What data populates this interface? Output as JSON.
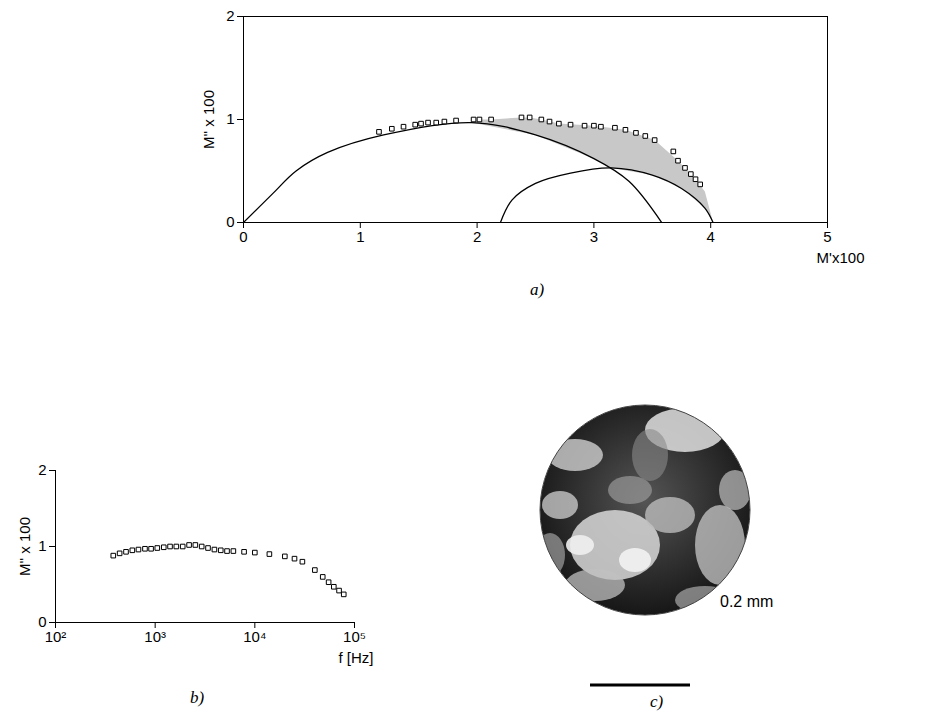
{
  "chart_data": [
    {
      "type": "scatter",
      "caption": "a)",
      "x_label": "M'x100",
      "y_label": "M'' x 100",
      "xlim": [
        0,
        5
      ],
      "xticks": [
        0,
        1,
        2,
        3,
        4,
        5
      ],
      "ylim": [
        0,
        2
      ],
      "yticks": [
        0,
        1,
        2
      ],
      "grid": false,
      "series": [
        {
          "type": "area",
          "color": "#c8c8c8",
          "x": [
            1.95,
            2.02,
            2.12,
            2.38,
            2.45,
            2.55,
            2.7,
            3.0,
            3.27,
            3.52,
            3.72,
            3.87,
            3.95,
            4.02,
            3.95,
            3.75,
            3.5,
            3.15,
            3.0,
            2.5,
            1.95
          ],
          "values": [
            0.97,
            1.0,
            1.0,
            1.02,
            1.02,
            1.0,
            0.96,
            0.94,
            0.9,
            0.8,
            0.6,
            0.42,
            0.3,
            0,
            0.14,
            0.33,
            0.46,
            0.53,
            0.62,
            0.85,
            0.97
          ]
        },
        {
          "type": "line",
          "color": "#000000",
          "line_style": "solid",
          "x": [
            0,
            0.25,
            0.45,
            0.72,
            1.2,
            1.95,
            2.5,
            3.0,
            3.3,
            3.58
          ],
          "values": [
            0,
            0.28,
            0.5,
            0.68,
            0.85,
            0.97,
            0.85,
            0.62,
            0.4,
            0
          ]
        },
        {
          "type": "line",
          "color": "#000000",
          "line_style": "solid",
          "x": [
            2.2,
            2.3,
            2.5,
            2.8,
            3.15,
            3.5,
            3.75,
            3.95,
            4.02
          ],
          "values": [
            0,
            0.22,
            0.38,
            0.48,
            0.53,
            0.46,
            0.33,
            0.14,
            0
          ]
        },
        {
          "type": "scatter",
          "color": "#000000",
          "marker": "square",
          "x": [
            1.16,
            1.27,
            1.37,
            1.47,
            1.52,
            1.58,
            1.65,
            1.72,
            1.82,
            1.97,
            2.02,
            2.12,
            2.38,
            2.45,
            2.55,
            2.62,
            2.7,
            2.8,
            2.92,
            3.0,
            3.06,
            3.18,
            3.27,
            3.36,
            3.44,
            3.52,
            3.68,
            3.72,
            3.78,
            3.83,
            3.87,
            3.91
          ],
          "values": [
            0.88,
            0.91,
            0.93,
            0.95,
            0.96,
            0.97,
            0.97,
            0.98,
            0.99,
            1.0,
            1.0,
            1.0,
            1.02,
            1.02,
            1.0,
            0.98,
            0.96,
            0.95,
            0.94,
            0.94,
            0.93,
            0.92,
            0.9,
            0.87,
            0.84,
            0.8,
            0.69,
            0.6,
            0.53,
            0.47,
            0.42,
            0.37
          ]
        }
      ]
    },
    {
      "type": "scatter",
      "caption": "b)",
      "x_label": "f [Hz]",
      "y_label": "M'' x 100",
      "log": "x",
      "xlim": [
        100,
        100000
      ],
      "xticks": [
        {
          "value": 100,
          "label": "10²"
        },
        {
          "value": 1000,
          "label": "10³"
        },
        {
          "value": 10000,
          "label": "10⁴"
        },
        {
          "value": 100000,
          "label": "10⁵"
        }
      ],
      "ylim": [
        0,
        2
      ],
      "yticks": [
        0,
        1,
        2
      ],
      "grid": false,
      "series": [
        {
          "type": "scatter",
          "color": "#000000",
          "marker": "square",
          "x": [
            380,
            440,
            510,
            590,
            680,
            790,
            910,
            1050,
            1220,
            1410,
            1630,
            1890,
            2190,
            2530,
            2930,
            3390,
            3930,
            4550,
            5260,
            6090,
            7800,
            10000,
            14000,
            20000,
            25000,
            30000,
            40000,
            48000,
            55000,
            62000,
            70000,
            78000
          ],
          "values": [
            0.88,
            0.91,
            0.93,
            0.95,
            0.96,
            0.97,
            0.97,
            0.98,
            0.99,
            1.0,
            1.0,
            1.0,
            1.02,
            1.02,
            1.0,
            0.98,
            0.96,
            0.95,
            0.94,
            0.94,
            0.93,
            0.92,
            0.9,
            0.87,
            0.84,
            0.8,
            0.69,
            0.6,
            0.53,
            0.47,
            0.42,
            0.37
          ]
        }
      ]
    }
  ],
  "image": {
    "caption": "c)",
    "scale_bar": "0.2 mm"
  }
}
